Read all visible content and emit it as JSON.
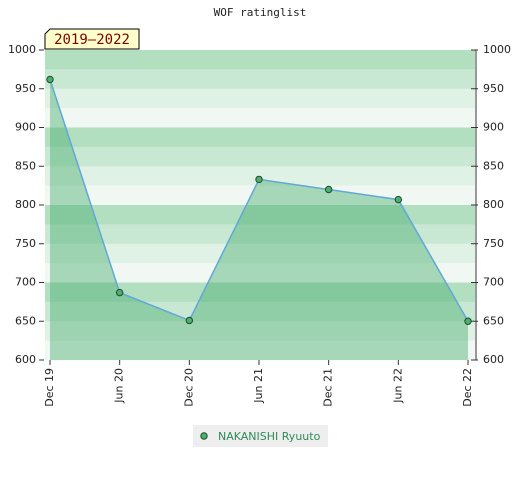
{
  "chart_data": {
    "type": "line",
    "title": "WOF ratinglist",
    "annotation": "2019–2022",
    "categories": [
      "Dec 19",
      "Jun 20",
      "Dec 20",
      "Jun 21",
      "Dec 21",
      "Jun 22",
      "Dec 22"
    ],
    "series": [
      {
        "name": "NAKANISHI Ryuuto",
        "color": "#5fa8d8",
        "marker_color": "#4caf70",
        "fill": "rgba(76,175,112,0.45)",
        "values": [
          962,
          687,
          651,
          833,
          820,
          807,
          650
        ]
      }
    ],
    "ylim": [
      600,
      1000
    ],
    "yticks": [
      600,
      650,
      700,
      750,
      800,
      850,
      900,
      950,
      1000
    ],
    "y2lim": [
      600,
      1000
    ],
    "y2ticks": [
      600,
      650,
      700,
      750,
      800,
      850,
      900,
      950,
      1000
    ]
  }
}
